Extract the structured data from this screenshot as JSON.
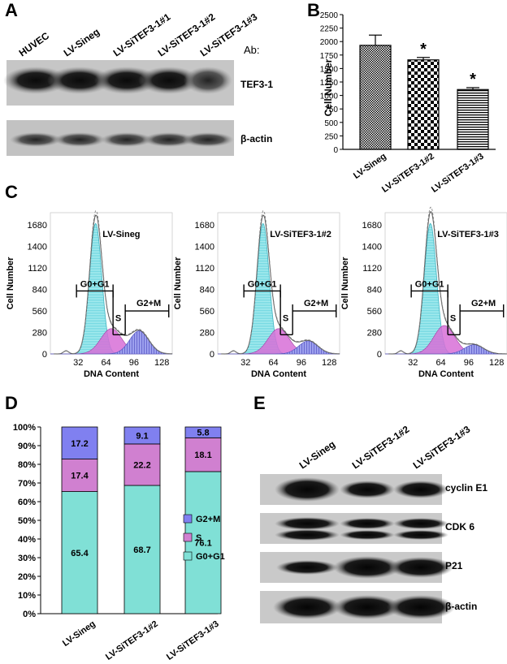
{
  "panels": {
    "A": "A",
    "B": "B",
    "C": "C",
    "D": "D",
    "E": "E"
  },
  "panel_a": {
    "lanes": [
      "HUVEC",
      "LV-Sineg",
      "LV-SiTEF3-1#1",
      "LV-SiTEF3-1#2",
      "LV-SiTEF3-1#3"
    ],
    "ab_label": "Ab:",
    "bands": [
      "TEF3-1",
      "β-actin"
    ]
  },
  "panel_e": {
    "lanes": [
      "LV-Sineg",
      "LV-SiTEF3-1#2",
      "LV-SiTEF3-1#3"
    ],
    "bands": [
      "cyclin E1",
      "CDK 6",
      "P21",
      "β-actin"
    ]
  },
  "chart_data": [
    {
      "panel": "B",
      "type": "bar",
      "categories": [
        "LV-Sineg",
        "LV-SiTEF3-1#2",
        "LV-SiTEF3-1#3"
      ],
      "values": [
        1930,
        1660,
        1110
      ],
      "errors": [
        190,
        45,
        35
      ],
      "significance": [
        "",
        "*",
        "*"
      ],
      "ylabel": "Cell Number",
      "ylim": [
        0,
        2500
      ],
      "yticks": [
        0,
        250,
        500,
        750,
        1000,
        1250,
        1500,
        1750,
        2000,
        2250,
        2500
      ]
    },
    {
      "panel": "C",
      "type": "area",
      "xlabel": "DNA Content",
      "ylabel": "Cell Number",
      "xticks": [
        32,
        64,
        96,
        128
      ],
      "yticks": [
        0,
        280,
        560,
        840,
        1120,
        1400,
        1680
      ],
      "ylim": [
        0,
        1840
      ],
      "gates": [
        "G0+G1",
        "S",
        "G2+M"
      ],
      "histograms": [
        {
          "title": "LV-Sineg",
          "g1_peak": [
            52,
            1700
          ],
          "s_peak": [
            70,
            330
          ],
          "g2_peak": [
            102,
            300
          ]
        },
        {
          "title": "LV-SiTEF3-1#2",
          "g1_peak": [
            52,
            1700
          ],
          "s_peak": [
            70,
            330
          ],
          "g2_peak": [
            104,
            170
          ]
        },
        {
          "title": "LV-SiTEF3-1#3",
          "g1_peak": [
            52,
            1700
          ],
          "s_peak": [
            68,
            370
          ],
          "g2_peak": [
            102,
            120
          ]
        }
      ]
    },
    {
      "panel": "D",
      "type": "bar",
      "stacked": true,
      "categories": [
        "LV-Sineg",
        "LV-SiTEF3-1#2",
        "LV-SiTEF3-1#3"
      ],
      "series": [
        {
          "name": "G0+G1",
          "values": [
            65.4,
            68.7,
            76.1
          ],
          "color": "#80e0d6"
        },
        {
          "name": "S",
          "values": [
            17.4,
            22.2,
            18.1
          ],
          "color": "#d080d0"
        },
        {
          "name": "G2+M",
          "values": [
            17.2,
            9.1,
            5.8
          ],
          "color": "#8080f0"
        }
      ],
      "value_labels": [
        [
          "65.4",
          "17.4",
          "17.2"
        ],
        [
          "68.7",
          "22.2",
          "9.1"
        ],
        [
          "76.1",
          "18.1",
          "5.8"
        ]
      ],
      "yticks": [
        "0%",
        "10%",
        "20%",
        "30%",
        "40%",
        "50%",
        "60%",
        "70%",
        "80%",
        "90%",
        "100%"
      ],
      "legend_order": [
        "G2+M",
        "S",
        "G0+G1"
      ],
      "legend_position": "right"
    }
  ]
}
